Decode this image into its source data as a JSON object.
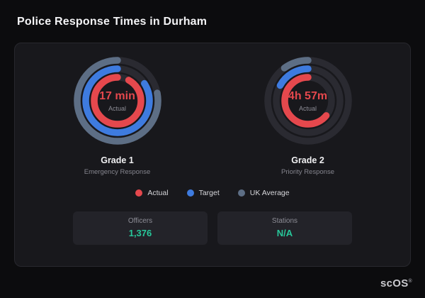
{
  "page_title": "Police Response Times in Durham",
  "colors": {
    "actual": "#e5484d",
    "target": "#3e7bdf",
    "uk_average": "#5d6e85",
    "track": "#2a2a31",
    "stat_value": "#27c79a"
  },
  "chart_data": {
    "type": "radial",
    "direction": "counter-clockwise",
    "start_angle": "top",
    "gauges": [
      {
        "center_value": "17 min",
        "center_label": "Actual",
        "title": "Grade 1",
        "subtitle": "Emergency Response",
        "rings": [
          {
            "name": "UK Average",
            "pct": 78,
            "color": "#5d6e85"
          },
          {
            "name": "Target",
            "pct": 84,
            "color": "#3e7bdf"
          },
          {
            "name": "Actual",
            "pct": 92,
            "color": "#e5484d"
          }
        ]
      },
      {
        "center_value": "4h 57m",
        "center_label": "Actual",
        "title": "Grade 2",
        "subtitle": "Priority Response",
        "rings": [
          {
            "name": "UK Average",
            "pct": 10,
            "color": "#5d6e85"
          },
          {
            "name": "Target",
            "pct": 17,
            "color": "#3e7bdf"
          },
          {
            "name": "Actual",
            "pct": 64,
            "color": "#e5484d"
          }
        ]
      }
    ],
    "legend": [
      {
        "label": "Actual",
        "color": "#e5484d"
      },
      {
        "label": "Target",
        "color": "#3e7bdf"
      },
      {
        "label": "UK Average",
        "color": "#5d6e85"
      }
    ]
  },
  "stats": [
    {
      "label": "Officers",
      "value": "1,376"
    },
    {
      "label": "Stations",
      "value": "N/A"
    }
  ],
  "brand": {
    "text": "scOS",
    "reg": "®"
  }
}
